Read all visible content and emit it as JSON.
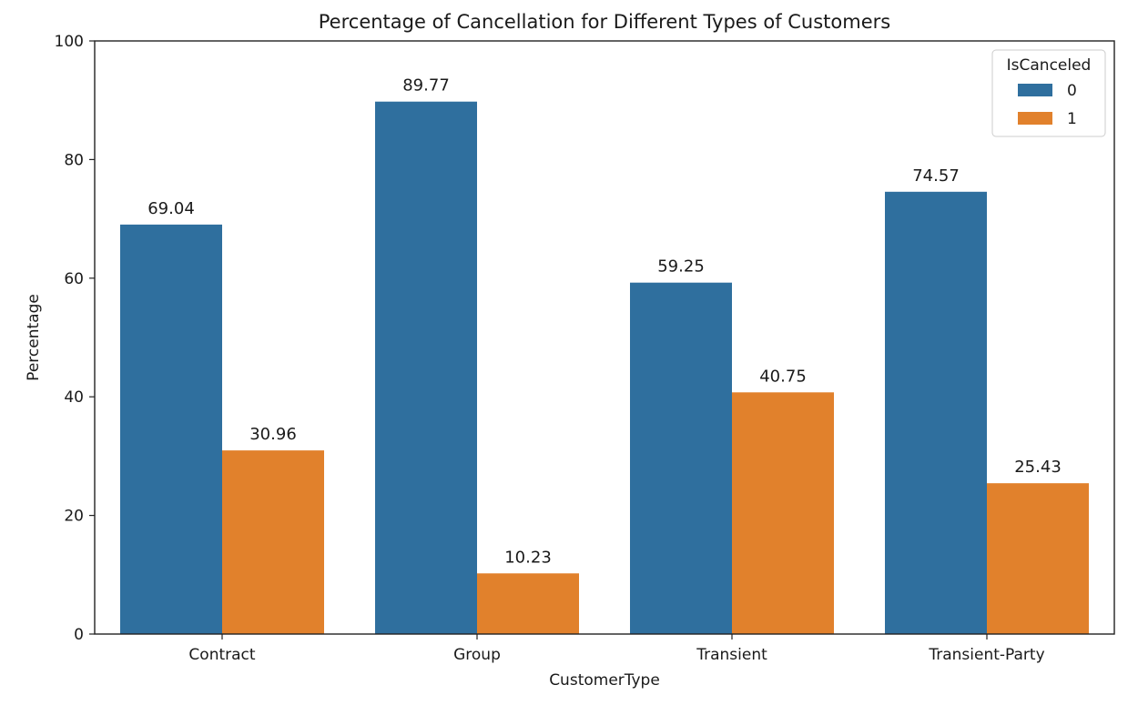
{
  "chart_data": {
    "type": "bar",
    "title": "Percentage of Cancellation for Different Types of Customers",
    "xlabel": "CustomerType",
    "ylabel": "Percentage",
    "ylim": [
      0,
      100
    ],
    "yticks": [
      0,
      20,
      40,
      60,
      80,
      100
    ],
    "ytick_labels": [
      "0",
      "20",
      "40",
      "60",
      "80",
      "100"
    ],
    "categories": [
      "Contract",
      "Group",
      "Transient",
      "Transient-Party"
    ],
    "series": [
      {
        "name": "0",
        "color": "#2f6f9e",
        "values": [
          69.04,
          89.77,
          59.25,
          74.57
        ],
        "labels": [
          "69.04",
          "89.77",
          "59.25",
          "74.57"
        ]
      },
      {
        "name": "1",
        "color": "#e1812c",
        "values": [
          30.96,
          10.23,
          40.75,
          25.43
        ],
        "labels": [
          "30.96",
          "10.23",
          "40.75",
          "25.43"
        ]
      }
    ],
    "legend": {
      "title": "IsCanceled",
      "position": "top-right"
    },
    "grid": false
  }
}
